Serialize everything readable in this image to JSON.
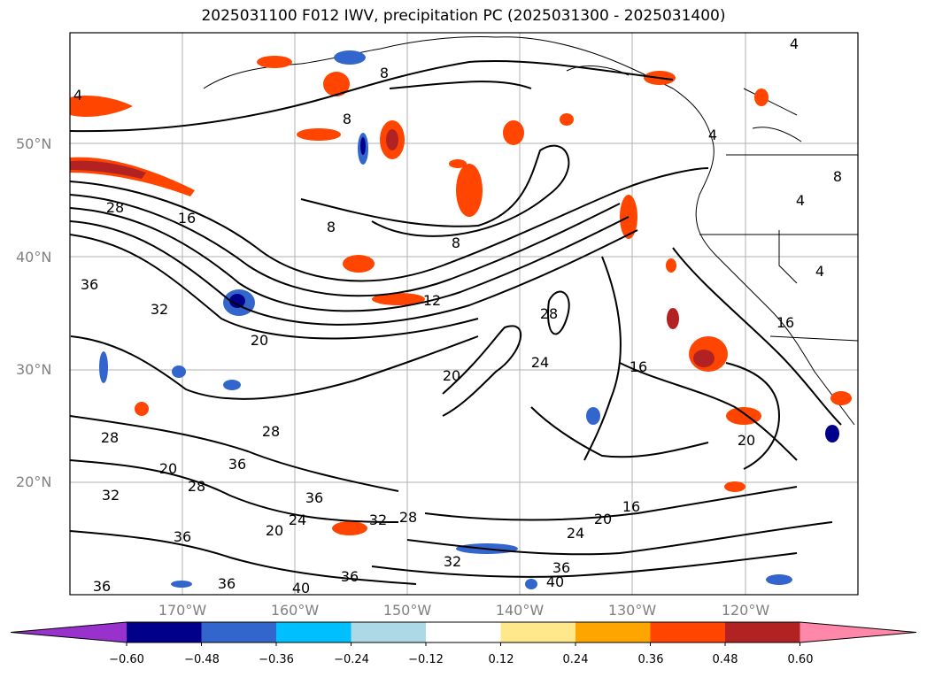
{
  "title": "2025031100 F012 IWV, precipitation PC (2025031300 - 2025031400)",
  "lat_labels": [
    "50°N",
    "40°N",
    "30°N",
    "20°N"
  ],
  "lon_labels": [
    "170°W",
    "160°W",
    "150°W",
    "140°W",
    "130°W",
    "120°W"
  ],
  "colorbar": {
    "ticks": [
      "−0.60",
      "−0.48",
      "−0.36",
      "−0.24",
      "−0.12",
      "0.12",
      "0.24",
      "0.36",
      "0.48",
      "0.60"
    ],
    "colors": [
      "#9932cc",
      "#00008b",
      "#3366cc",
      "#00bfff",
      "#add8e6",
      "#ffffff",
      "#ffe88c",
      "#ffa500",
      "#ff4500",
      "#b22222",
      "#ff88aa"
    ]
  },
  "contour_labels": [
    "4",
    "8",
    "12",
    "16",
    "20",
    "24",
    "28",
    "32",
    "36",
    "40"
  ],
  "map_labels": [
    {
      "text": "4"
    },
    {
      "text": "4"
    },
    {
      "text": "4"
    },
    {
      "text": "8"
    },
    {
      "text": "8"
    },
    {
      "text": "8"
    },
    {
      "text": "8"
    },
    {
      "text": "28"
    },
    {
      "text": "16"
    },
    {
      "text": "36"
    },
    {
      "text": "32"
    },
    {
      "text": "20"
    },
    {
      "text": "12"
    },
    {
      "text": "28"
    },
    {
      "text": "24"
    },
    {
      "text": "20"
    },
    {
      "text": "16"
    },
    {
      "text": "20"
    },
    {
      "text": "28"
    },
    {
      "text": "28"
    },
    {
      "text": "20"
    },
    {
      "text": "36"
    },
    {
      "text": "28"
    },
    {
      "text": "32"
    },
    {
      "text": "36"
    },
    {
      "text": "24"
    },
    {
      "text": "20"
    },
    {
      "text": "32"
    },
    {
      "text": "28"
    },
    {
      "text": "24"
    },
    {
      "text": "20"
    },
    {
      "text": "16"
    },
    {
      "text": "36"
    },
    {
      "text": "32"
    },
    {
      "text": "36"
    },
    {
      "text": "36"
    },
    {
      "text": "40"
    },
    {
      "text": "36"
    },
    {
      "text": "40"
    },
    {
      "text": "36"
    },
    {
      "text": "4"
    },
    {
      "text": "4"
    },
    {
      "text": "8"
    },
    {
      "text": "16"
    }
  ]
}
